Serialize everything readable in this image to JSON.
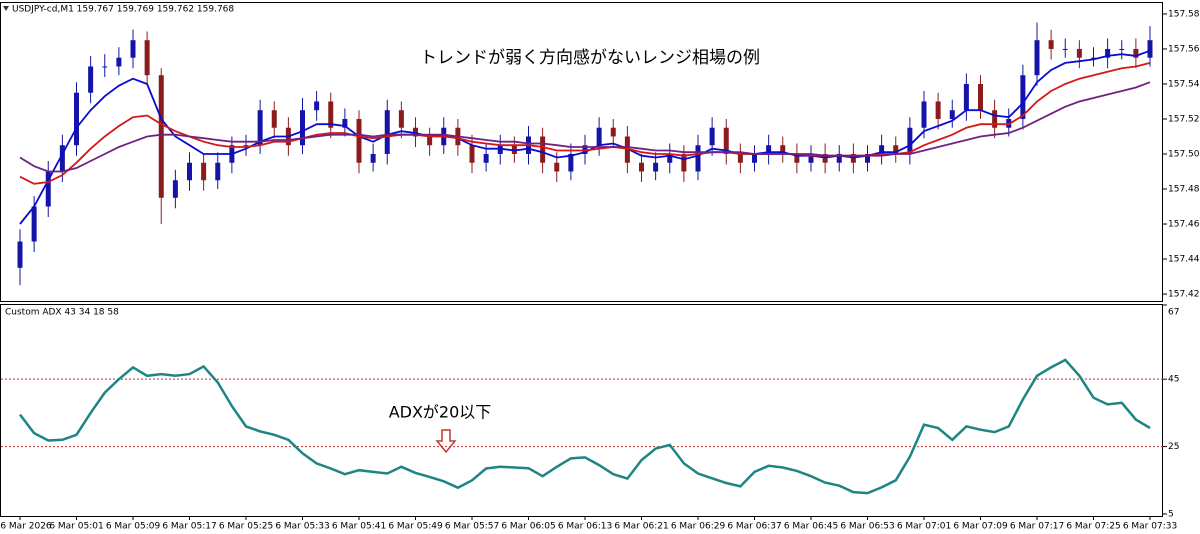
{
  "chart_data": [
    {
      "type": "candlestick",
      "title": "USDJPY-cd,M1 159.767 159.769 159.762 159.768",
      "annotation": "トレンドが弱く方向感がないレンジ相場の例",
      "categories": [
        "6 Mar 2026",
        null,
        null,
        null,
        "6 Mar 05:01",
        null,
        null,
        null,
        "6 Mar 05:09",
        null,
        null,
        null,
        "6 Mar 05:17",
        null,
        null,
        null,
        "6 Mar 05:25",
        null,
        null,
        null,
        "6 Mar 05:33",
        null,
        null,
        null,
        "6 Mar 05:41",
        null,
        null,
        null,
        "6 Mar 05:49",
        null,
        null,
        null,
        "6 Mar 05:57",
        null,
        null,
        null,
        "6 Mar 06:05",
        null,
        null,
        null,
        "6 Mar 06:13",
        null,
        null,
        null,
        "6 Mar 06:21",
        null,
        null,
        null,
        "6 Mar 06:29",
        null,
        null,
        null,
        "6 Mar 06:37",
        null,
        null,
        null,
        "6 Mar 06:45",
        null,
        null,
        null,
        "6 Mar 06:53",
        null,
        null,
        null,
        "6 Mar 07:01",
        null,
        null,
        null,
        "6 Mar 07:09",
        null,
        null,
        null,
        "6 Mar 07:17",
        null,
        null,
        null,
        "6 Mar 07:25",
        null,
        null,
        null,
        "6 Mar 07:33"
      ],
      "open": [
        157.44,
        157.455,
        157.475,
        157.495,
        157.51,
        157.54,
        157.555,
        157.555,
        157.56,
        157.57,
        157.55,
        157.48,
        157.49,
        157.5,
        157.49,
        157.5,
        157.51,
        157.51,
        157.53,
        157.52,
        157.51,
        157.53,
        157.535,
        157.52,
        157.525,
        157.5,
        157.505,
        157.53,
        157.52,
        157.515,
        157.51,
        157.52,
        157.51,
        157.5,
        157.505,
        157.51,
        157.505,
        157.515,
        157.5,
        157.495,
        157.505,
        157.51,
        157.52,
        157.515,
        157.5,
        157.495,
        157.5,
        157.505,
        157.495,
        157.51,
        157.52,
        157.505,
        157.5,
        157.505,
        157.51,
        157.505,
        157.5,
        157.505,
        157.5,
        157.505,
        157.5,
        157.505,
        157.51,
        157.505,
        157.52,
        157.535,
        157.525,
        157.53,
        157.545,
        157.53,
        157.52,
        157.525,
        157.55,
        157.57,
        157.565,
        157.565,
        157.56,
        157.56,
        157.565,
        157.565,
        157.56
      ],
      "high": [
        157.462,
        157.481,
        157.501,
        157.516,
        157.546,
        157.561,
        157.562,
        157.566,
        157.576,
        157.575,
        157.554,
        157.496,
        157.506,
        157.505,
        157.506,
        157.515,
        157.516,
        157.536,
        157.535,
        157.526,
        157.537,
        157.541,
        157.54,
        157.531,
        157.53,
        157.511,
        157.536,
        157.535,
        157.526,
        157.52,
        157.526,
        157.525,
        157.516,
        157.511,
        157.516,
        157.515,
        157.521,
        157.52,
        157.506,
        157.511,
        157.516,
        157.526,
        157.525,
        157.521,
        157.505,
        157.506,
        157.511,
        157.51,
        157.516,
        157.526,
        157.525,
        157.511,
        157.51,
        157.516,
        157.515,
        157.511,
        157.51,
        157.511,
        157.51,
        157.511,
        157.51,
        157.516,
        157.515,
        157.526,
        157.541,
        157.54,
        157.536,
        157.551,
        157.55,
        157.536,
        157.531,
        157.556,
        157.58,
        157.576,
        157.571,
        157.57,
        157.566,
        157.571,
        157.57,
        157.571,
        157.578
      ],
      "low": [
        157.43,
        157.449,
        157.469,
        157.489,
        157.504,
        157.534,
        157.549,
        157.55,
        157.554,
        157.544,
        157.465,
        157.474,
        157.484,
        157.484,
        157.485,
        157.494,
        157.504,
        157.505,
        157.514,
        157.504,
        157.505,
        157.524,
        157.514,
        157.515,
        157.494,
        157.495,
        157.499,
        157.514,
        157.509,
        157.504,
        157.505,
        157.504,
        157.494,
        157.495,
        157.499,
        157.5,
        157.499,
        157.494,
        157.489,
        157.49,
        157.499,
        157.504,
        157.509,
        157.494,
        157.489,
        157.49,
        157.494,
        157.489,
        157.49,
        157.504,
        157.499,
        157.494,
        157.495,
        157.499,
        157.5,
        157.494,
        157.495,
        157.494,
        157.495,
        157.494,
        157.495,
        157.499,
        157.5,
        157.499,
        157.514,
        157.519,
        157.52,
        157.524,
        157.525,
        157.514,
        157.515,
        157.519,
        157.544,
        157.559,
        157.56,
        157.554,
        157.555,
        157.554,
        157.559,
        157.554,
        157.555
      ],
      "close": [
        157.455,
        157.475,
        157.495,
        157.51,
        157.54,
        157.555,
        157.555,
        157.56,
        157.57,
        157.55,
        157.48,
        157.49,
        157.5,
        157.49,
        157.5,
        157.51,
        157.51,
        157.53,
        157.52,
        157.51,
        157.53,
        157.535,
        157.52,
        157.525,
        157.5,
        157.505,
        157.53,
        157.52,
        157.515,
        157.51,
        157.52,
        157.51,
        157.5,
        157.505,
        157.51,
        157.505,
        157.515,
        157.5,
        157.495,
        157.505,
        157.51,
        157.52,
        157.515,
        157.5,
        157.495,
        157.5,
        157.505,
        157.495,
        157.51,
        157.52,
        157.505,
        157.5,
        157.505,
        157.51,
        157.505,
        157.5,
        157.505,
        157.5,
        157.505,
        157.5,
        157.505,
        157.51,
        157.505,
        157.52,
        157.535,
        157.525,
        157.53,
        157.545,
        157.53,
        157.52,
        157.525,
        157.55,
        157.57,
        157.565,
        157.565,
        157.56,
        157.56,
        157.565,
        157.565,
        157.56,
        157.57
      ],
      "up_color": "#1414a8",
      "down_color": "#8c1c1c",
      "series": [
        {
          "color": "#0a0ad2",
          "values": [
            157.465,
            157.475,
            157.49,
            157.505,
            157.52,
            157.53,
            157.538,
            157.544,
            157.548,
            157.545,
            157.525,
            157.515,
            157.51,
            157.505,
            157.505,
            157.505,
            157.508,
            157.512,
            157.515,
            157.515,
            157.518,
            157.522,
            157.522,
            157.521,
            157.515,
            157.512,
            157.516,
            157.518,
            157.517,
            157.515,
            157.516,
            157.514,
            157.51,
            157.508,
            157.508,
            157.507,
            157.508,
            157.506,
            157.503,
            157.504,
            157.506,
            157.51,
            157.511,
            157.508,
            157.504,
            157.503,
            157.504,
            157.502,
            157.504,
            157.508,
            157.507,
            157.505,
            157.505,
            157.506,
            157.506,
            157.504,
            157.504,
            157.503,
            157.504,
            157.503,
            157.504,
            157.506,
            157.506,
            157.51,
            157.518,
            157.521,
            157.524,
            157.53,
            157.53,
            157.527,
            157.526,
            157.534,
            157.546,
            157.553,
            157.557,
            157.558,
            157.559,
            157.561,
            157.562,
            157.561,
            157.564
          ]
        },
        {
          "color": "#d41818",
          "values": [
            157.492,
            157.488,
            157.489,
            157.493,
            157.5,
            157.508,
            157.515,
            157.521,
            157.526,
            157.527,
            157.522,
            157.518,
            157.515,
            157.512,
            157.51,
            157.509,
            157.509,
            157.51,
            157.512,
            157.512,
            157.514,
            157.516,
            157.517,
            157.517,
            157.515,
            157.514,
            157.515,
            157.516,
            157.516,
            157.515,
            157.515,
            157.514,
            157.512,
            157.511,
            157.51,
            157.51,
            157.51,
            157.509,
            157.507,
            157.507,
            157.507,
            157.508,
            157.509,
            157.508,
            157.506,
            157.505,
            157.505,
            157.504,
            157.505,
            157.506,
            157.506,
            157.505,
            157.505,
            157.505,
            157.505,
            157.505,
            157.504,
            157.504,
            157.504,
            157.504,
            157.504,
            157.505,
            157.505,
            157.506,
            157.51,
            157.513,
            157.516,
            157.52,
            157.522,
            157.522,
            157.522,
            157.527,
            157.535,
            157.541,
            157.545,
            157.548,
            157.55,
            157.552,
            157.554,
            157.555,
            157.557
          ]
        },
        {
          "color": "#6e2282",
          "values": [
            157.503,
            157.498,
            157.495,
            157.495,
            157.497,
            157.501,
            157.505,
            157.509,
            157.512,
            157.515,
            157.516,
            157.516,
            157.515,
            157.514,
            157.513,
            157.512,
            157.512,
            157.512,
            157.513,
            157.513,
            157.514,
            157.515,
            157.516,
            157.516,
            157.516,
            157.515,
            157.516,
            157.516,
            157.516,
            157.516,
            157.516,
            157.515,
            157.514,
            157.513,
            157.512,
            157.512,
            157.511,
            157.511,
            157.51,
            157.509,
            157.509,
            157.509,
            157.509,
            157.509,
            157.508,
            157.507,
            157.507,
            157.506,
            157.506,
            157.506,
            157.506,
            157.506,
            157.505,
            157.505,
            157.505,
            157.505,
            157.505,
            157.504,
            157.504,
            157.504,
            157.504,
            157.504,
            157.505,
            157.505,
            157.507,
            157.509,
            157.511,
            157.513,
            157.515,
            157.516,
            157.517,
            157.52,
            157.524,
            157.528,
            157.532,
            157.535,
            157.537,
            157.539,
            157.541,
            157.543,
            157.546
          ]
        }
      ],
      "ylim": [
        157.4216,
        157.5901
      ],
      "yticks": [
        157.425,
        157.445,
        157.465,
        157.485,
        157.505,
        157.525,
        157.545,
        157.565,
        157.585
      ]
    },
    {
      "type": "line",
      "title": "Custom ADX 43 34 18 58",
      "annotation": "ADXが20以下",
      "color": "#1e8484",
      "values": [
        34.5,
        29,
        26.8,
        27,
        28.5,
        35,
        41,
        45,
        48.5,
        46,
        46.5,
        46,
        46.5,
        48.8,
        44,
        37,
        31,
        29.5,
        28.5,
        27,
        23,
        20,
        18.5,
        16.8,
        18,
        17.5,
        17,
        19,
        17.2,
        16,
        14.7,
        12.8,
        15,
        18.5,
        19,
        18.8,
        18.6,
        16.2,
        19,
        21.5,
        21.8,
        19.5,
        16.8,
        15.5,
        21,
        24.4,
        25.5,
        20,
        17,
        15.6,
        14.2,
        13.2,
        17.5,
        19.3,
        18.8,
        17.8,
        16.2,
        14.3,
        13.4,
        11.5,
        11.2,
        12.9,
        15,
        22,
        31.5,
        30.5,
        27,
        31,
        30,
        29.3,
        31,
        39,
        46,
        48.5,
        50.7,
        46,
        39.5,
        37.5,
        38,
        33,
        30.5
      ],
      "levels": [
        45,
        25
      ],
      "level_color": "#c03030",
      "ylim": [
        5,
        67
      ],
      "yticks": [
        5,
        25,
        45,
        67
      ]
    }
  ]
}
